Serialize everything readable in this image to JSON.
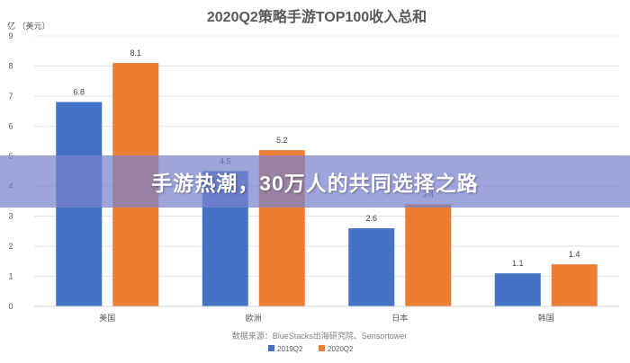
{
  "banner": {
    "headline": "手游热潮，30万人的共同选择之路"
  },
  "colors": {
    "series_2019": "#4472C4",
    "series_2020": "#ED7D31",
    "grid": "#e3e3e3",
    "text": "#595959"
  },
  "chart_data": {
    "type": "bar",
    "title": "2020Q2策略手游TOP100收入总和",
    "ylabel": "亿 （美元）",
    "xlabel": "",
    "source": "数据来源：BlueStacks出海研究院、Sensortower",
    "categories": [
      "美国",
      "欧洲",
      "日本",
      "韩国"
    ],
    "series": [
      {
        "name": "2019Q2",
        "values": [
          6.8,
          4.5,
          2.6,
          1.1
        ]
      },
      {
        "name": "2020Q2",
        "values": [
          8.1,
          5.2,
          3.4,
          1.4
        ]
      }
    ],
    "ylim": [
      0,
      9
    ],
    "yticks": [
      "0",
      "1",
      "2",
      "3",
      "4",
      "5",
      "6",
      "7",
      "8",
      "9"
    ],
    "grid": true,
    "legend": "bottom"
  }
}
